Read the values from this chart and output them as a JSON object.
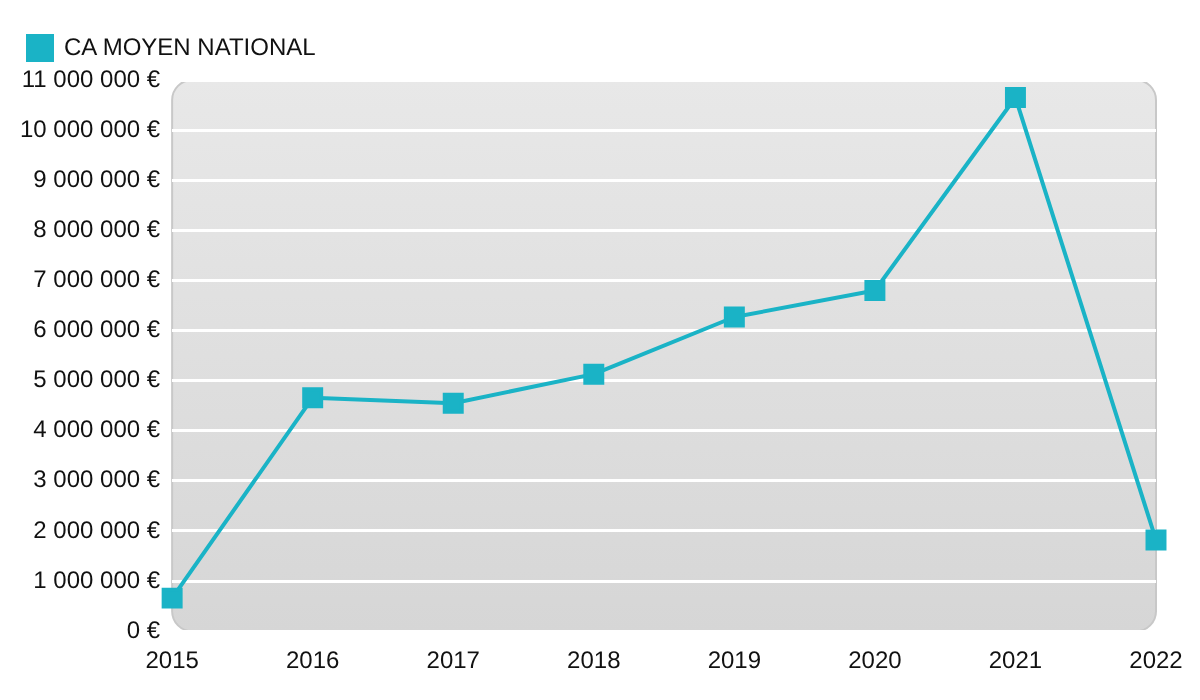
{
  "chart_data": {
    "type": "line",
    "categories": [
      "2015",
      "2016",
      "2017",
      "2018",
      "2019",
      "2020",
      "2021",
      "2022"
    ],
    "series": [
      {
        "name": "CA MOYEN NATIONAL",
        "color": "#1ab3c6",
        "values": [
          660000,
          4660000,
          4550000,
          5130000,
          6270000,
          6800000,
          10650000,
          1820000
        ]
      }
    ],
    "ylim": [
      0,
      11000000
    ],
    "yticks": [
      {
        "value": 0,
        "label": "0 €"
      },
      {
        "value": 1000000,
        "label": "1 000 000 €"
      },
      {
        "value": 2000000,
        "label": "2 000 000 €"
      },
      {
        "value": 3000000,
        "label": "3 000 000 €"
      },
      {
        "value": 4000000,
        "label": "4 000 000 €"
      },
      {
        "value": 5000000,
        "label": "5 000 000 €"
      },
      {
        "value": 6000000,
        "label": "6 000 000 €"
      },
      {
        "value": 7000000,
        "label": "7 000 000 €"
      },
      {
        "value": 8000000,
        "label": "8 000 000 €"
      },
      {
        "value": 9000000,
        "label": "9 000 000 €"
      },
      {
        "value": 10000000,
        "label": "10 000 000 €"
      },
      {
        "value": 11000000,
        "label": "11 000 000 €"
      }
    ],
    "grid": "y",
    "legend": "top left",
    "marker": "square",
    "line_style": "solid"
  }
}
